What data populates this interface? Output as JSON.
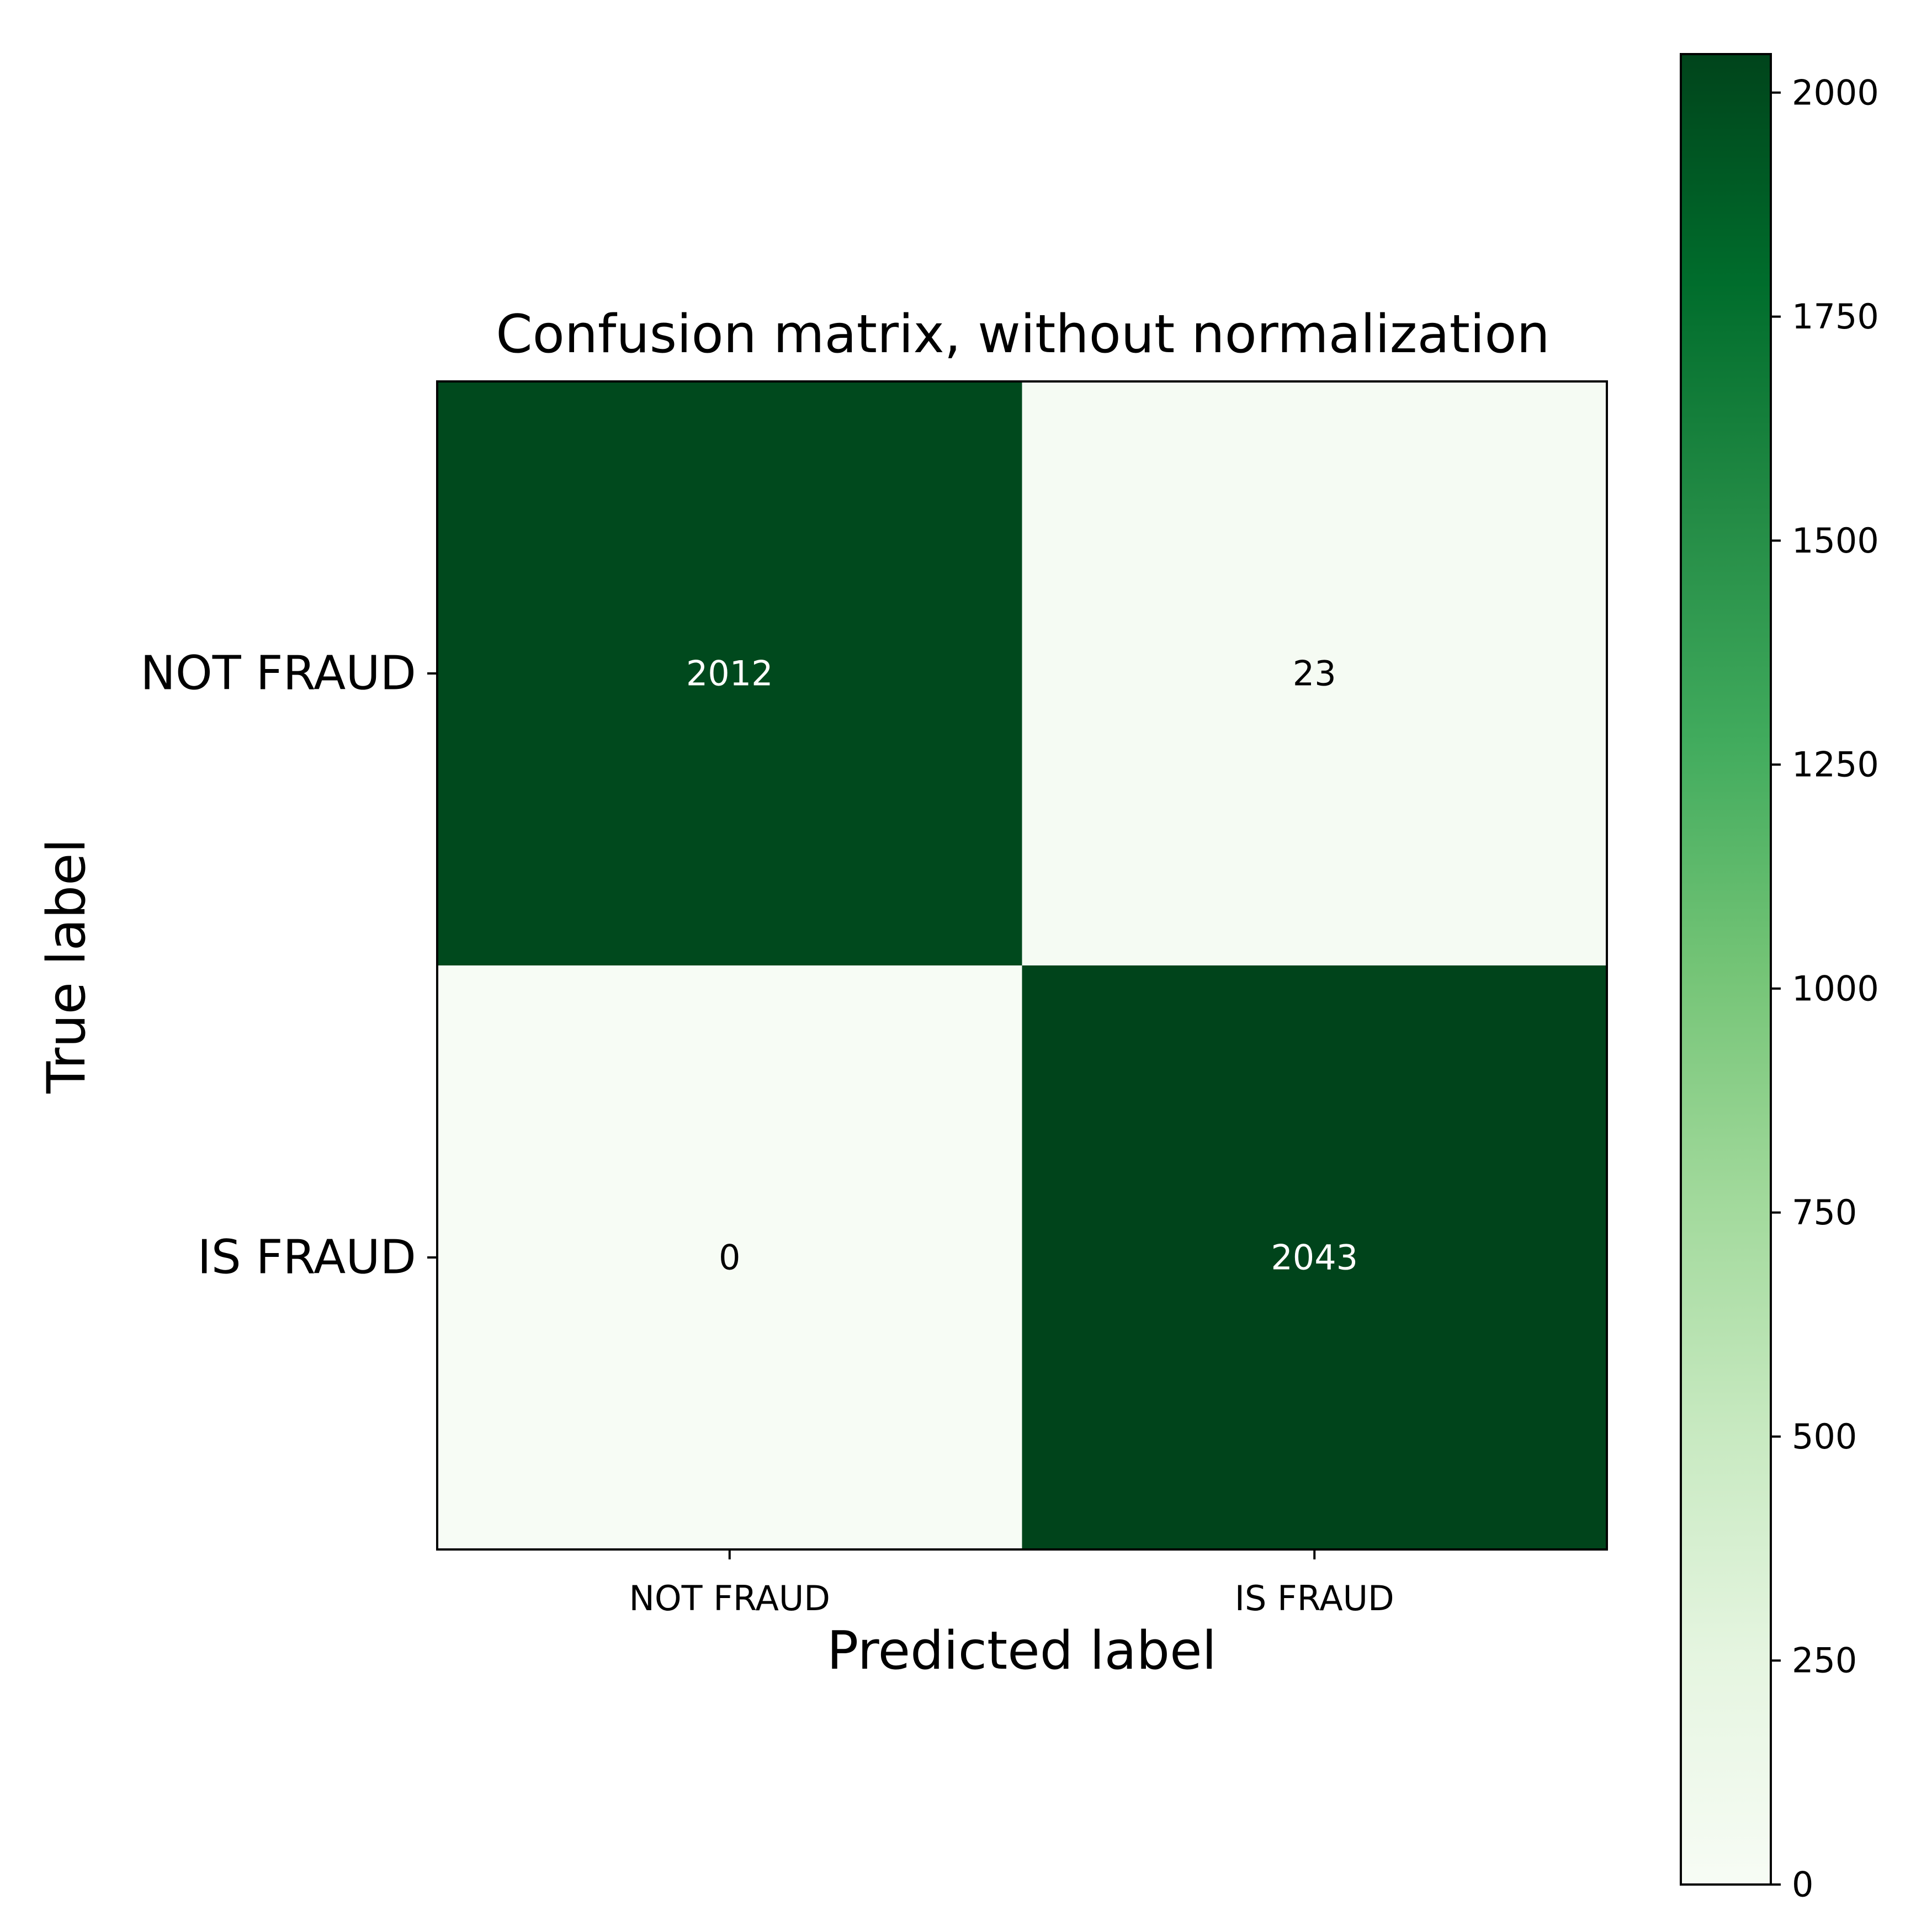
{
  "chart_data": {
    "type": "heatmap",
    "title": "Confusion matrix, without normalization",
    "xlabel": "Predicted label",
    "ylabel": "True label",
    "x_categories": [
      "NOT FRAUD",
      "IS FRAUD"
    ],
    "y_categories": [
      "NOT FRAUD",
      "IS FRAUD"
    ],
    "matrix": [
      [
        2012,
        23
      ],
      [
        0,
        2043
      ]
    ],
    "colormap": "Greens",
    "colors": {
      "low": "#f7fcf5",
      "high": "#00441b",
      "text_dark": "#000000",
      "text_light": "#ffffff"
    },
    "colorbar": {
      "min": 0,
      "max": 2043,
      "ticks": [
        0,
        250,
        500,
        750,
        1000,
        1250,
        1500,
        1750,
        2000
      ],
      "tick_labels": [
        "0",
        "250",
        "500",
        "750",
        "1000",
        "1250",
        "1500",
        "1750",
        "2000"
      ]
    }
  }
}
